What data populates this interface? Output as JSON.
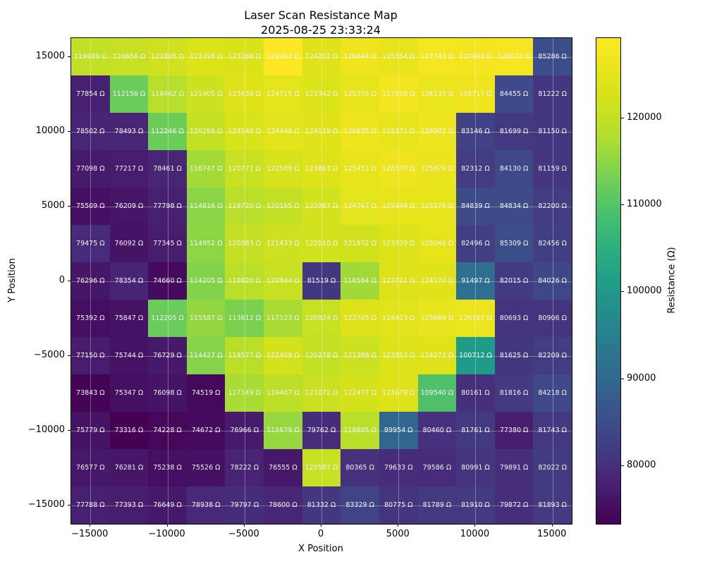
{
  "chart_data": {
    "type": "heatmap",
    "title": "Laser Scan Resistance Map",
    "subtitle": "2025-08-25 23:33:24",
    "xlabel": "X Position",
    "ylabel": "Y Position",
    "colorbar_label": "Resistance (Ω)",
    "colormap": "viridis",
    "grid": true,
    "legend_position": "colorbar-right",
    "cell_label_suffix": " Ω",
    "vmin": 73316,
    "vmax": 129262,
    "x": [
      -15000,
      -12500,
      -10000,
      -7500,
      -5000,
      -2500,
      0,
      2500,
      5000,
      7500,
      10000,
      12500,
      15000
    ],
    "y": [
      15000,
      12500,
      10000,
      7500,
      5000,
      2500,
      0,
      -2500,
      -5000,
      -7500,
      -10000,
      -12500,
      -15000
    ],
    "x_ticks": [
      -15000,
      -10000,
      -5000,
      0,
      5000,
      10000,
      15000
    ],
    "y_ticks": [
      15000,
      10000,
      5000,
      0,
      -5000,
      -10000,
      -15000
    ],
    "x_range": [
      -16250,
      16250
    ],
    "y_range": [
      -16250,
      16250
    ],
    "colorbar_ticks": [
      120000,
      110000,
      100000,
      90000,
      80000
    ],
    "values": [
      [
        119989,
        120656,
        121805,
        123398,
        123268,
        129262,
        124202,
        126844,
        125554,
        127743,
        127493,
        128022,
        85286
      ],
      [
        77854,
        112156,
        118462,
        121405,
        123638,
        124715,
        123342,
        125376,
        127518,
        126133,
        126717,
        84455,
        81222
      ],
      [
        78502,
        78493,
        112246,
        120299,
        123140,
        124448,
        124119,
        126635,
        125371,
        126502,
        83146,
        81699,
        81150
      ],
      [
        77098,
        77217,
        78461,
        116747,
        120771,
        122589,
        123883,
        125451,
        126570,
        125679,
        82312,
        84130,
        81159
      ],
      [
        75509,
        76209,
        77798,
        114816,
        118720,
        120165,
        122067,
        124767,
        125444,
        125576,
        84839,
        84834,
        82200
      ],
      [
        79475,
        76092,
        77345,
        114952,
        120383,
        121433,
        122010,
        121972,
        123339,
        125046,
        82496,
        85309,
        82456
      ],
      [
        76296,
        78354,
        74660,
        114205,
        118820,
        120844,
        81519,
        116564,
        123721,
        124170,
        91497,
        82015,
        84026
      ],
      [
        75392,
        75847,
        112205,
        115587,
        113612,
        117123,
        120824,
        123745,
        124423,
        125669,
        126187,
        80693,
        80906
      ],
      [
        77150,
        75744,
        76729,
        114427,
        118577,
        122409,
        120278,
        121388,
        123553,
        124273,
        100712,
        81625,
        82209
      ],
      [
        73843,
        75347,
        76098,
        74519,
        117149,
        119407,
        121072,
        122477,
        123679,
        109540,
        80161,
        81816,
        84218
      ],
      [
        75779,
        73316,
        74228,
        74672,
        76966,
        115679,
        79762,
        118895,
        89954,
        80460,
        81761,
        77380,
        81743
      ],
      [
        76577,
        76281,
        75238,
        75526,
        78222,
        76555,
        120587,
        80365,
        79633,
        79586,
        80991,
        79891,
        82022
      ],
      [
        77788,
        77393,
        76649,
        78938,
        79797,
        78600,
        81332,
        83329,
        80775,
        81789,
        81910,
        79872,
        81893
      ]
    ]
  }
}
